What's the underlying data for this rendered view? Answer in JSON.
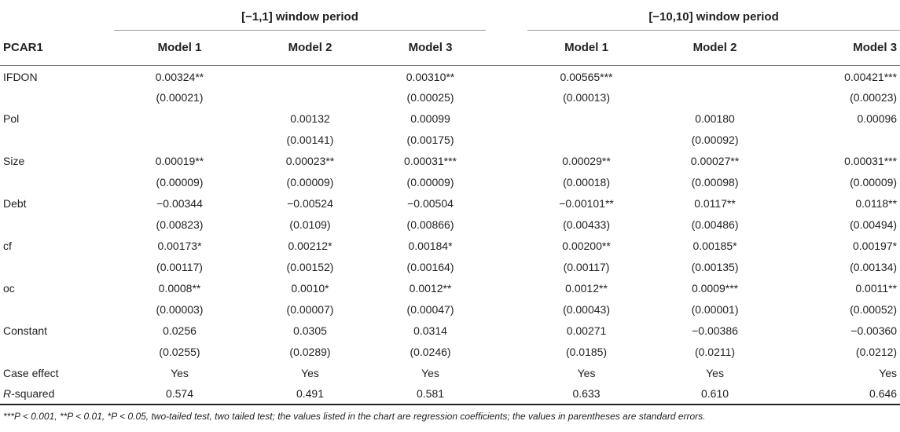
{
  "table": {
    "row_header": "PCAR1",
    "groups": [
      "[−1,1] window period",
      "[−10,10] window period"
    ],
    "models": [
      "Model 1",
      "Model 2",
      "Model 3",
      "Model 1",
      "Model 2",
      "Model 3"
    ],
    "rows": [
      {
        "label": "IFDON",
        "values": [
          "0.00324**",
          "",
          "0.00310**",
          "0.00565***",
          "",
          "0.00421***"
        ]
      },
      {
        "label": "",
        "values": [
          "(0.00021)",
          "",
          "(0.00025)",
          "(0.00013)",
          "",
          "(0.00023)"
        ]
      },
      {
        "label": "Pol",
        "values": [
          "",
          "0.00132",
          "0.00099",
          "",
          "0.00180",
          "0.00096"
        ]
      },
      {
        "label": "",
        "values": [
          "",
          "(0.00141)",
          "(0.00175)",
          "",
          "(0.00092)",
          ""
        ]
      },
      {
        "label": "Size",
        "values": [
          "0.00019**",
          "0.00023**",
          "0.00031***",
          "0.00029**",
          "0.00027**",
          "0.00031***"
        ]
      },
      {
        "label": "",
        "values": [
          "(0.00009)",
          "(0.00009)",
          "(0.00009)",
          "(0.00018)",
          "(0.00098)",
          "(0.00009)"
        ]
      },
      {
        "label": "Debt",
        "values": [
          "−0.00344",
          "−0.00524",
          "−0.00504",
          "−0.00101**",
          "0.0117**",
          "0.0118**"
        ]
      },
      {
        "label": "",
        "values": [
          "(0.00823)",
          "(0.0109)",
          "(0.00866)",
          "(0.00433)",
          "(0.00486)",
          "(0.00494)"
        ]
      },
      {
        "label": "cf",
        "values": [
          "0.00173*",
          "0.00212*",
          "0.00184*",
          "0.00200**",
          "0.00185*",
          "0.00197*"
        ]
      },
      {
        "label": "",
        "values": [
          "(0.00117)",
          "(0.00152)",
          "(0.00164)",
          "(0.00117)",
          "(0.00135)",
          "(0.00134)"
        ]
      },
      {
        "label": "oc",
        "values": [
          "0.0008**",
          "0.0010*",
          "0.0012**",
          "0.0012**",
          "0.0009***",
          "0.0011**"
        ]
      },
      {
        "label": "",
        "values": [
          "(0.00003)",
          "(0.00007)",
          "(0.00047)",
          "(0.00043)",
          "(0.00001)",
          "(0.00052)"
        ]
      },
      {
        "label": "Constant",
        "values": [
          "0.0256",
          "0.0305",
          "0.0314",
          "0.00271",
          "−0.00386",
          "−0.00360"
        ]
      },
      {
        "label": "",
        "values": [
          "(0.0255)",
          "(0.0289)",
          "(0.0246)",
          "(0.0185)",
          "(0.0211)",
          "(0.0212)"
        ]
      },
      {
        "label": "Case effect",
        "values": [
          "Yes",
          "Yes",
          "Yes",
          "Yes",
          "Yes",
          "Yes"
        ]
      },
      {
        "label_italic": "R",
        "label": "-squared",
        "values": [
          "0.574",
          "0.491",
          "0.581",
          "0.633",
          "0.610",
          "0.646"
        ]
      }
    ],
    "note": "***P < 0.001, **P < 0.01, *P < 0.05, two-tailed test, two tailed test; the values listed in the chart are regression coefficients; the values in parentheses are standard errors."
  }
}
